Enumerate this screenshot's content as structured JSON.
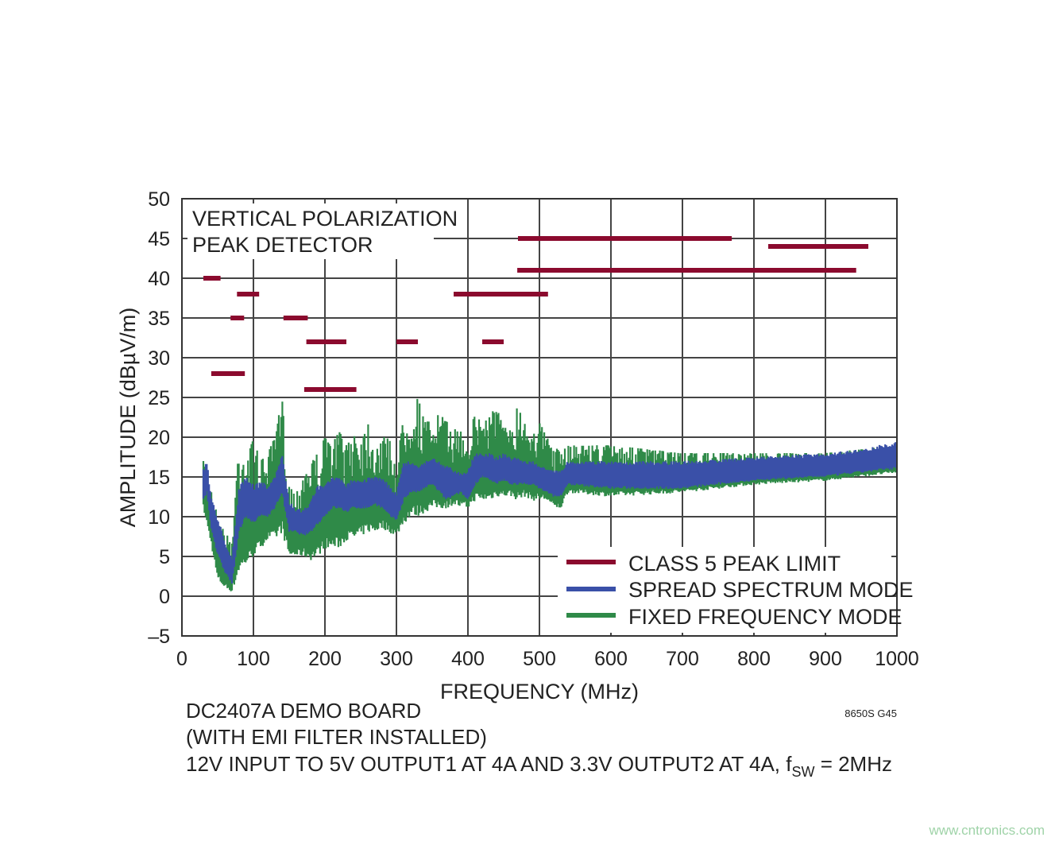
{
  "chart_data": {
    "type": "area",
    "title_lines": [
      "VERTICAL POLARIZATION",
      "PEAK DETECTOR"
    ],
    "xlabel": "FREQUENCY (MHz)",
    "ylabel": "AMPLITUDE (dBµV/m)",
    "xlim": [
      0,
      1000
    ],
    "ylim": [
      -5,
      50
    ],
    "xticks": [
      0,
      100,
      200,
      300,
      400,
      500,
      600,
      700,
      800,
      900,
      1000
    ],
    "yticks": [
      50,
      45,
      40,
      35,
      30,
      25,
      20,
      15,
      10,
      5,
      0,
      -5
    ],
    "ytick_labels": [
      "50",
      "45",
      "40",
      "35",
      "30",
      "25",
      "20",
      "15",
      "10",
      "5",
      "0",
      "–5"
    ],
    "grid": true,
    "legend_position": "bottom-right",
    "colors": {
      "limit": "#8b0a2e",
      "spread": "#3a50a8",
      "fixed": "#2f8a48",
      "grid": "#444444"
    },
    "limits": {
      "name": "CLASS 5 PEAK LIMIT",
      "segments": [
        {
          "x": [
            30,
            54
          ],
          "y": 40
        },
        {
          "x": [
            41,
            88
          ],
          "y": 28
        },
        {
          "x": [
            68,
            87
          ],
          "y": 35
        },
        {
          "x": [
            77,
            108
          ],
          "y": 38
        },
        {
          "x": [
            142,
            176
          ],
          "y": 35
        },
        {
          "x": [
            174,
            230
          ],
          "y": 32
        },
        {
          "x": [
            171,
            244
          ],
          "y": 26
        },
        {
          "x": [
            300,
            330
          ],
          "y": 32
        },
        {
          "x": [
            380,
            512
          ],
          "y": 38
        },
        {
          "x": [
            420,
            450
          ],
          "y": 32
        },
        {
          "x": [
            469,
            943
          ],
          "y": 41
        },
        {
          "x": [
            470,
            769
          ],
          "y": 45
        },
        {
          "x": [
            820,
            960
          ],
          "y": 44
        }
      ]
    },
    "series": [
      {
        "name": "FIXED FREQUENCY MODE",
        "key": "fixed",
        "x": [
          30,
          40,
          50,
          60,
          70,
          80,
          90,
          100,
          110,
          120,
          130,
          140,
          150,
          160,
          170,
          180,
          190,
          200,
          210,
          220,
          230,
          240,
          250,
          260,
          270,
          280,
          290,
          300,
          310,
          320,
          330,
          340,
          350,
          360,
          370,
          380,
          390,
          400,
          410,
          420,
          430,
          440,
          450,
          460,
          470,
          480,
          490,
          500,
          510,
          520,
          530,
          540,
          600,
          700,
          800,
          900,
          950,
          1000
        ],
        "low": [
          11,
          7,
          2,
          1,
          0.5,
          3,
          4,
          5,
          6,
          7,
          7,
          8,
          5,
          5,
          5,
          4.5,
          5,
          6,
          6,
          6,
          7,
          7,
          7.5,
          8,
          8,
          8.5,
          8,
          7.5,
          9,
          10,
          10,
          10.5,
          11,
          11,
          11,
          11.5,
          11,
          11,
          12,
          12,
          12,
          12.5,
          12.5,
          12.5,
          12,
          12.5,
          12,
          12,
          12,
          11,
          11,
          13,
          12.5,
          13,
          14,
          14.5,
          15,
          15.5
        ],
        "high": [
          17,
          14,
          10,
          8,
          7,
          20,
          17,
          20,
          17,
          18,
          20,
          25,
          14,
          13,
          16,
          17,
          18,
          20,
          19,
          21,
          19,
          21,
          20,
          22,
          19,
          20,
          20,
          16,
          23,
          24,
          25,
          22,
          22,
          23,
          22,
          21,
          21,
          20,
          23,
          22,
          23,
          24,
          21,
          22,
          24,
          22,
          21,
          22,
          20,
          19,
          18,
          19,
          19,
          18,
          18,
          18,
          18.5,
          19
        ]
      },
      {
        "name": "SPREAD SPECTRUM MODE",
        "key": "spread",
        "x": [
          30,
          35,
          40,
          50,
          60,
          70,
          80,
          90,
          100,
          110,
          120,
          130,
          140,
          150,
          160,
          170,
          180,
          190,
          200,
          210,
          220,
          230,
          240,
          250,
          260,
          270,
          280,
          290,
          300,
          310,
          320,
          330,
          340,
          350,
          360,
          370,
          380,
          390,
          400,
          410,
          420,
          430,
          440,
          450,
          460,
          470,
          480,
          490,
          500,
          510,
          520,
          530,
          540,
          600,
          700,
          800,
          900,
          950,
          1000
        ],
        "low": [
          12,
          13,
          9,
          5,
          3,
          1.5,
          8,
          10,
          9,
          10,
          10,
          11,
          13,
          8,
          8,
          7.5,
          8,
          9,
          10,
          11,
          11,
          10.5,
          11,
          11,
          11,
          11.5,
          11,
          10,
          9.5,
          12,
          13,
          13,
          13.5,
          14,
          13,
          12,
          12.5,
          13,
          12,
          14,
          15,
          14.5,
          14,
          14.5,
          14,
          14,
          14,
          14,
          13.5,
          13,
          12.5,
          12.5,
          14,
          13.5,
          13.5,
          14.5,
          15,
          15.5,
          16
        ],
        "high": [
          16,
          17,
          13,
          10,
          7,
          5,
          14,
          15,
          14,
          14.5,
          14,
          15,
          18,
          12,
          11,
          11,
          12,
          14,
          14,
          15,
          15,
          14,
          15,
          14.5,
          15,
          15,
          15,
          14,
          13,
          17,
          17,
          16.5,
          17,
          17.5,
          17,
          16.5,
          16,
          15.5,
          16,
          18,
          18,
          18,
          17.5,
          18,
          17.5,
          17.5,
          17,
          17,
          16.5,
          16,
          16,
          16,
          17,
          17,
          17,
          17.5,
          18,
          18.5,
          19.5
        ]
      }
    ],
    "legend": [
      "CLASS 5 PEAK LIMIT",
      "SPREAD SPECTRUM MODE",
      "FIXED FREQUENCY MODE"
    ],
    "notes": [
      "DC2407A DEMO BOARD",
      "(WITH EMI FILTER INSTALLED)"
    ],
    "note3": {
      "main": "12V INPUT TO 5V OUTPUT1 AT 4A AND 3.3V OUTPUT2 AT 4A, f",
      "sub": "SW",
      "tail": " = 2MHz"
    },
    "figure_id": "8650S G45"
  },
  "watermark": "www.cntronics.com"
}
